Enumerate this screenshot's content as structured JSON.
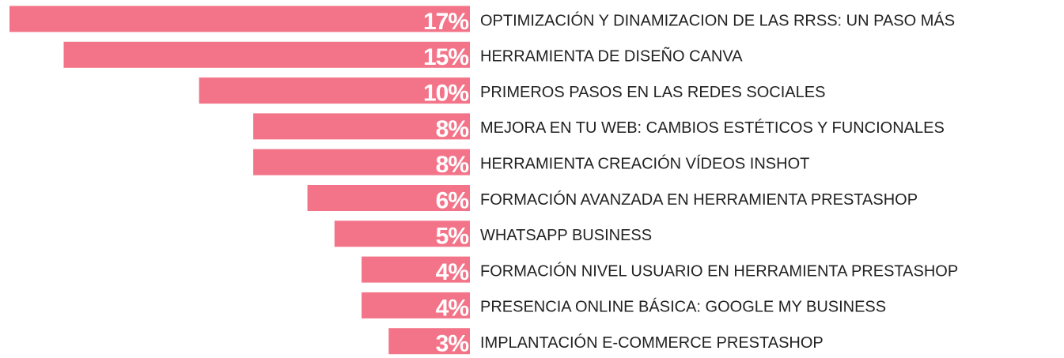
{
  "chart_data": {
    "type": "bar",
    "orientation": "horizontal",
    "color": "#f37489",
    "categories": [
      "OPTIMIZACIÓN Y DINAMIZACION DE LAS RRSS: UN PASO MÁS",
      "HERRAMIENTA DE DISEÑO CANVA",
      "PRIMEROS PASOS EN LAS REDES SOCIALES",
      "MEJORA EN TU WEB: CAMBIOS ESTÉTICOS Y FUNCIONALES",
      "HERRAMIENTA CREACIÓN VÍDEOS INSHOT",
      "FORMACIÓN AVANZADA EN HERRAMIENTA PRESTASHOP",
      "WHATSAPP BUSINESS",
      "FORMACIÓN NIVEL USUARIO EN HERRAMIENTA PRESTASHOP",
      "PRESENCIA ONLINE BÁSICA: GOOGLE MY BUSINESS",
      "IMPLANTACIÓN E-COMMERCE PRESTASHOP"
    ],
    "values": [
      17,
      15,
      10,
      8,
      8,
      6,
      5,
      4,
      4,
      3
    ],
    "value_labels": [
      "17%",
      "15%",
      "10%",
      "8%",
      "8%",
      "6%",
      "5%",
      "4%",
      "4%",
      "3%"
    ]
  }
}
